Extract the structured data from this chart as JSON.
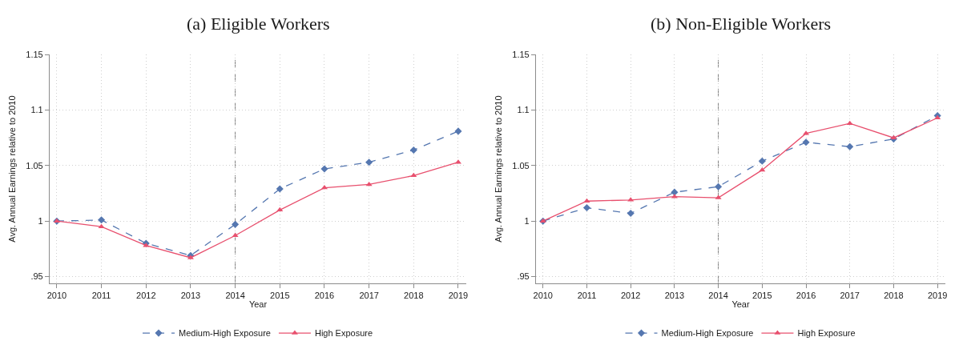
{
  "chart_data": [
    {
      "type": "line",
      "title": "(a) Eligible Workers",
      "xlabel": "Year",
      "ylabel": "Avg. Annual Earnings relative to 2010",
      "x": [
        2010,
        2011,
        2012,
        2013,
        2014,
        2015,
        2016,
        2017,
        2018,
        2019
      ],
      "series": [
        {
          "name": "Medium-High Exposure",
          "color": "#5577b0",
          "marker": "diamond",
          "line_style": "dashed",
          "values": [
            1.0,
            1.001,
            0.98,
            0.969,
            0.997,
            1.029,
            1.047,
            1.053,
            1.064,
            1.081
          ]
        },
        {
          "name": "High Exposure",
          "color": "#e8506e",
          "marker": "triangle",
          "line_style": "solid",
          "values": [
            1.0,
            0.995,
            0.978,
            0.967,
            0.987,
            1.01,
            1.03,
            1.033,
            1.041,
            1.053
          ]
        }
      ],
      "xlim": [
        2009.84,
        2019.18
      ],
      "xticks": [
        2010,
        2011,
        2012,
        2013,
        2014,
        2015,
        2016,
        2017,
        2018,
        2019
      ],
      "ylim": [
        0.944,
        1.15
      ],
      "yticks": [
        {
          "value": 0.95,
          "label": ".95"
        },
        1,
        1.05,
        1.1,
        1.15
      ],
      "ref_lines": [
        {
          "axis": "x",
          "value": 2014,
          "color": "#7f7f7f",
          "line_style": "dashed"
        }
      ],
      "grid": true,
      "legend": "bottom"
    },
    {
      "type": "line",
      "title": "(b) Non-Eligible Workers",
      "xlabel": "Year",
      "ylabel": "Avg. Annual Earnings relative to 2010",
      "x": [
        2010,
        2011,
        2012,
        2013,
        2014,
        2015,
        2016,
        2017,
        2018,
        2019
      ],
      "series": [
        {
          "name": "Medium-High Exposure",
          "color": "#5577b0",
          "marker": "diamond",
          "line_style": "dashed",
          "values": [
            1.0,
            1.012,
            1.007,
            1.026,
            1.031,
            1.054,
            1.071,
            1.067,
            1.074,
            1.095
          ]
        },
        {
          "name": "High Exposure",
          "color": "#e8506e",
          "marker": "triangle",
          "line_style": "solid",
          "values": [
            1.0,
            1.018,
            1.019,
            1.022,
            1.021,
            1.046,
            1.079,
            1.088,
            1.075,
            1.093
          ]
        }
      ],
      "xlim": [
        2009.84,
        2019.18
      ],
      "xticks": [
        2010,
        2011,
        2012,
        2013,
        2014,
        2015,
        2016,
        2017,
        2018,
        2019
      ],
      "ylim": [
        0.944,
        1.15
      ],
      "yticks": [
        {
          "value": 0.95,
          "label": ".95"
        },
        1,
        1.05,
        1.1,
        1.15
      ],
      "ref_lines": [
        {
          "axis": "x",
          "value": 2014,
          "color": "#7f7f7f",
          "line_style": "dashed"
        }
      ],
      "grid": true,
      "legend": "bottom"
    }
  ]
}
